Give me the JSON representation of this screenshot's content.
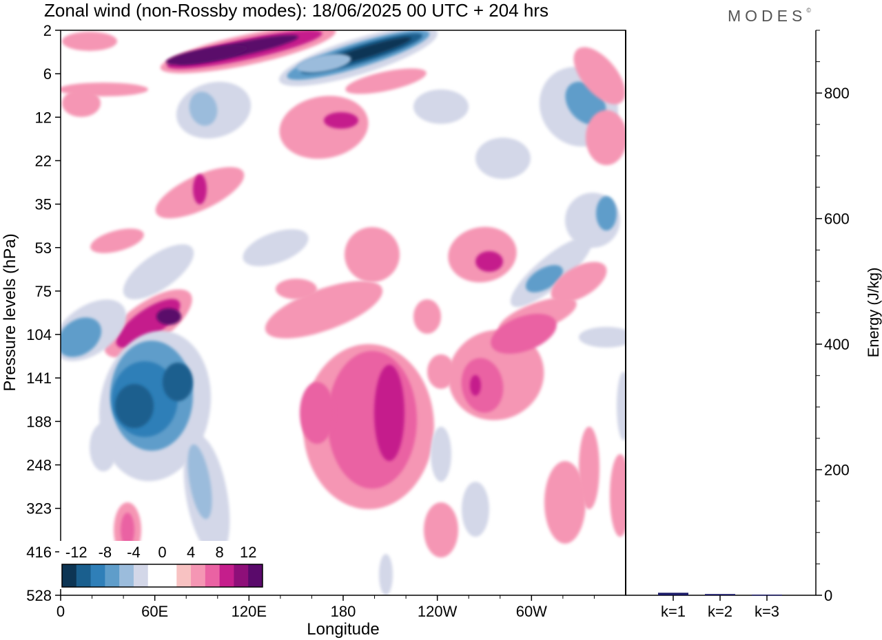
{
  "header": {
    "title": "Zonal wind (non-Rossby modes):  18/06/2025  00 UTC  + 204 hrs",
    "brand": "MODES",
    "brand_mark": "©"
  },
  "chart_data": [
    {
      "type": "heatmap",
      "title": "Zonal wind (non-Rossby modes):  18/06/2025  00 UTC  + 204 hrs",
      "xlabel": "Longitude",
      "ylabel": "Pressure levels (hPa)",
      "x_ticks": [
        "0",
        "60E",
        "120E",
        "180",
        "120W",
        "60W"
      ],
      "x_tick_values": [
        0,
        60,
        120,
        180,
        240,
        300
      ],
      "xlim": [
        0,
        360
      ],
      "y_ticks": [
        "2",
        "6",
        "12",
        "22",
        "35",
        "53",
        "75",
        "104",
        "141",
        "188",
        "248",
        "323",
        "416",
        "528"
      ],
      "y_axis": "pressure levels, equally spaced, top = 2 hPa, bottom = 528 hPa",
      "colorbar": {
        "labels": [
          "-12",
          "-8",
          "-4",
          "0",
          "4",
          "8",
          "12"
        ],
        "label_values": [
          -12,
          -8,
          -4,
          0,
          4,
          8,
          12
        ],
        "colors": [
          "#0d3554",
          "#1a5f8e",
          "#2f7fb8",
          "#5f9dca",
          "#9bbcdc",
          "#d3d7e8",
          "#ffffff",
          "#ffffff",
          "#f8c2c2",
          "#f596b4",
          "#ea62a3",
          "#c51e8c",
          "#8e0f79",
          "#5a0a6b"
        ],
        "placement": "bottom-left"
      },
      "features": [
        {
          "value": -14,
          "lon": 205,
          "level": "2-6",
          "description": "strong easterly jet tilting upward"
        },
        {
          "value": 11,
          "lon": 90,
          "level": "3-6",
          "description": "westerly maximum"
        },
        {
          "value": -12,
          "lon": 45,
          "level": "141-188",
          "description": "easterly core"
        },
        {
          "value": 7,
          "lon": 210,
          "level": "141-248",
          "description": "westerly region"
        },
        {
          "value": 6,
          "lon": 250,
          "level": "141-188",
          "description": "westerly region"
        },
        {
          "value": -6,
          "lon": 325,
          "level": "53-104",
          "description": "easterly band"
        },
        {
          "value": 7,
          "lon": 65,
          "level": "104",
          "description": "westerly band"
        }
      ]
    },
    {
      "type": "bar",
      "ylabel": "Energy (J/kg)",
      "categories": [
        "k=1",
        "k=2",
        "k=3"
      ],
      "values": [
        4,
        2,
        1
      ],
      "ylim": [
        0,
        900
      ],
      "y_ticks": [
        "0",
        "200",
        "400",
        "600",
        "800"
      ],
      "y_tick_values": [
        0,
        200,
        400,
        600,
        800
      ],
      "bar_color": "#1a1a66"
    }
  ]
}
